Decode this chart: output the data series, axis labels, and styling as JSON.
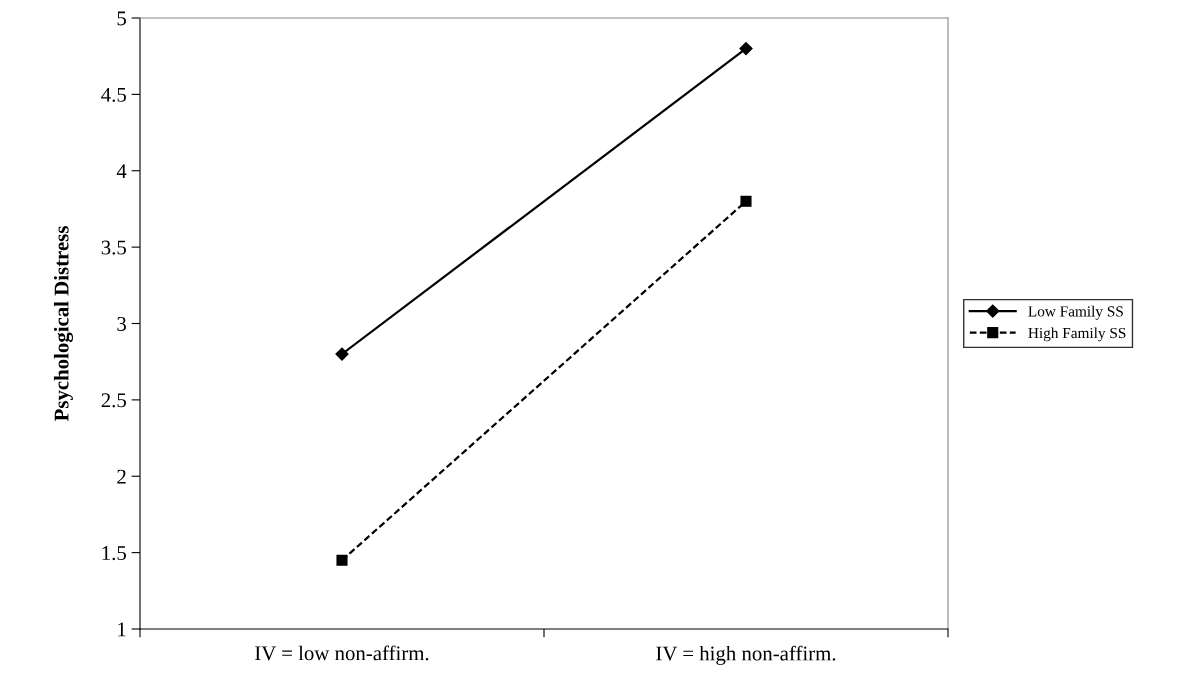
{
  "chart_data": {
    "type": "line",
    "ylabel": "Psychological Distress",
    "categories": [
      "IV = low non-affirm.",
      "IV = high non-affirm."
    ],
    "series": [
      {
        "name": "Low Family SS",
        "color": "#000000",
        "values": [
          2.8,
          4.8
        ],
        "marker": "diamond",
        "line_style": "solid"
      },
      {
        "name": "High Family SS",
        "color": "#000000",
        "values": [
          1.45,
          3.8
        ],
        "marker": "square",
        "line_style": "dashed"
      }
    ],
    "ylim": [
      1,
      5
    ],
    "yticks": [
      1,
      1.5,
      2,
      2.5,
      3,
      3.5,
      4,
      4.5,
      5
    ],
    "grid": false,
    "legend": "right"
  }
}
